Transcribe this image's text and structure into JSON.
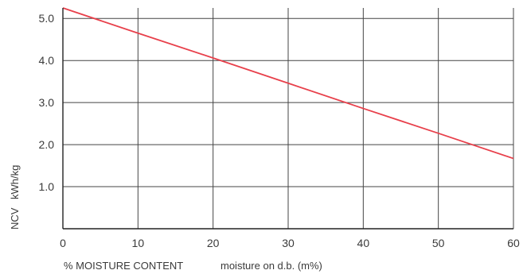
{
  "chart_data": {
    "type": "line",
    "xlabel": "% MOISTURE CONTENT",
    "xlabel_note": "moisture on d.b. (m%)",
    "ylabel_quantity": "NCV",
    "ylabel_unit": "kWh/kg",
    "xlim": [
      0,
      60
    ],
    "ylim": [
      0,
      5.25
    ],
    "x_ticks": [
      "0",
      "10",
      "20",
      "30",
      "40",
      "50",
      "60"
    ],
    "y_ticks": [
      "1.0",
      "2.0",
      "3.0",
      "4.0",
      "5.0"
    ],
    "x_tick_values": [
      0,
      10,
      20,
      30,
      40,
      50,
      60
    ],
    "y_tick_values": [
      1.0,
      2.0,
      3.0,
      4.0,
      5.0
    ],
    "grid": true,
    "series": [
      {
        "color": "#e8404b",
        "x": [
          0,
          10,
          20,
          30,
          40,
          50,
          60
        ],
        "y": [
          5.25,
          4.65,
          4.06,
          3.46,
          2.86,
          2.27,
          1.67
        ]
      }
    ]
  }
}
